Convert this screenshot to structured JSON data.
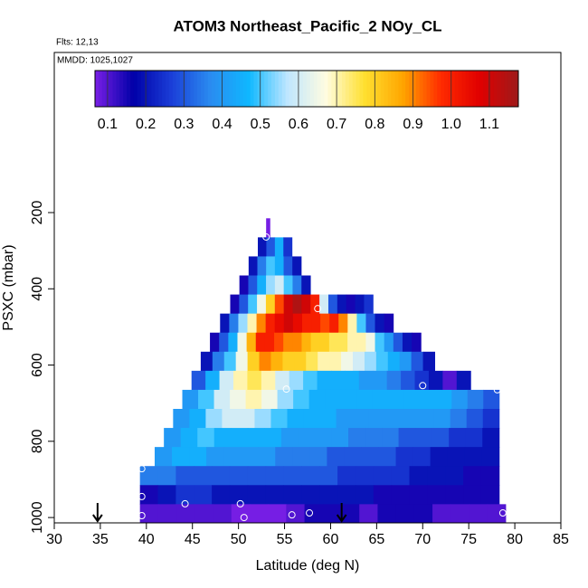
{
  "chart_data": {
    "type": "curtain",
    "title": "ATOM3 Northeast_Pacific_2 NOy_CL",
    "flights": "Flts: 12,13",
    "dates": "MMDD: 1025,1027",
    "xlabel": "Latitude (deg N)",
    "ylabel": "PSXC (mbar)",
    "xlim": [
      30,
      85
    ],
    "xticks": [
      30,
      35,
      40,
      45,
      50,
      55,
      60,
      65,
      70,
      75,
      80,
      85
    ],
    "ylim": [
      1014,
      -220
    ],
    "yticks": [
      200,
      400,
      600,
      800,
      1000
    ],
    "colorbar": {
      "range": [
        0.067,
        1.176
      ],
      "ticks": [
        0.1,
        0.2,
        0.3,
        0.4,
        0.5,
        0.6,
        0.7,
        0.8,
        0.9,
        {
          "value": 1,
          "label": "1.0"
        },
        1.1
      ]
    },
    "colormap": [
      "#7a1fe6",
      "#0000a8",
      "#1b3fd8",
      "#2a8cf0",
      "#0fb8ff",
      "#bfe6ff",
      "#fffce0",
      "#ffe030",
      "#ffa500",
      "#ff2a00",
      "#e00000",
      "#9e1a1a"
    ],
    "rows": [
      {
        "pressure": [
          215,
          265
        ],
        "lat": [
          53.0,
          53.4
        ],
        "values": [
          0.07
        ]
      },
      {
        "pressure": [
          265,
          315
        ],
        "lat": [
          52.1,
          55.8
        ],
        "values": [
          0.2,
          0.3,
          0.45,
          0.25
        ]
      },
      {
        "pressure": [
          315,
          365
        ],
        "lat": [
          51.1,
          56.8
        ],
        "values": [
          0.2,
          0.35,
          0.5,
          0.45,
          0.3,
          0.2
        ]
      },
      {
        "pressure": [
          365,
          415
        ],
        "lat": [
          50.1,
          57.8
        ],
        "values": [
          0.15,
          0.3,
          0.45,
          0.55,
          0.6,
          0.5,
          0.35,
          0.2
        ]
      },
      {
        "pressure": [
          415,
          465
        ],
        "lat": [
          49.1,
          64.6
        ],
        "values": [
          0.15,
          0.3,
          0.5,
          0.65,
          0.8,
          0.95,
          1.1,
          1.15,
          1.1,
          1.0,
          0.6,
          0.3,
          0.2,
          0.15,
          0.2,
          0.25
        ]
      },
      {
        "pressure": [
          465,
          515
        ],
        "lat": [
          48.0,
          66.8
        ],
        "values": [
          0.2,
          0.35,
          0.55,
          0.7,
          0.9,
          1.0,
          1.05,
          1.1,
          1.05,
          1.0,
          1.0,
          0.95,
          1.0,
          0.9,
          0.7,
          0.5,
          0.3,
          0.2,
          0.15
        ]
      },
      {
        "pressure": [
          515,
          565
        ],
        "lat": [
          46.9,
          69.8
        ],
        "values": [
          0.15,
          0.3,
          0.45,
          0.65,
          0.85,
          1.0,
          1.0,
          0.95,
          0.9,
          0.9,
          0.85,
          0.8,
          0.8,
          0.75,
          0.75,
          0.7,
          0.7,
          0.65,
          0.5,
          0.4,
          0.3,
          0.2,
          0.15
        ]
      },
      {
        "pressure": [
          565,
          615
        ],
        "lat": [
          45.9,
          71.3
        ],
        "values": [
          0.2,
          0.35,
          0.5,
          0.65,
          0.8,
          0.9,
          0.85,
          0.8,
          0.8,
          0.75,
          0.7,
          0.7,
          0.65,
          0.6,
          0.55,
          0.5,
          0.45,
          0.4,
          0.3,
          0.2
        ]
      },
      {
        "pressure": [
          615,
          665
        ],
        "lat": [
          44.9,
          75.2
        ],
        "values": [
          0.3,
          0.45,
          0.6,
          0.7,
          0.75,
          0.7,
          0.6,
          0.55,
          0.5,
          0.45,
          0.45,
          0.45,
          0.4,
          0.4,
          0.35,
          0.3,
          0.25,
          0.2,
          0.1,
          0.2
        ]
      },
      {
        "pressure": [
          665,
          715
        ],
        "lat": [
          43.9,
          78.3
        ],
        "values": [
          0.4,
          0.5,
          0.6,
          0.65,
          0.7,
          0.65,
          0.55,
          0.5,
          0.45,
          0.45,
          0.45,
          0.45,
          0.45,
          0.45,
          0.45,
          0.45,
          0.45,
          0.4,
          0.35,
          0.3
        ]
      },
      {
        "pressure": [
          715,
          765
        ],
        "lat": [
          42.9,
          78.3
        ],
        "values": [
          0.4,
          0.45,
          0.55,
          0.6,
          0.6,
          0.55,
          0.5,
          0.45,
          0.45,
          0.45,
          0.4,
          0.4,
          0.4,
          0.4,
          0.4,
          0.4,
          0.4,
          0.35,
          0.3,
          0.25
        ]
      },
      {
        "pressure": [
          765,
          815
        ],
        "lat": [
          41.9,
          78.3
        ],
        "values": [
          0.4,
          0.45,
          0.5,
          0.45,
          0.45,
          0.45,
          0.45,
          0.4,
          0.4,
          0.4,
          0.4,
          0.35,
          0.35,
          0.35,
          0.3,
          0.3,
          0.3,
          0.25,
          0.25,
          0.2
        ]
      },
      {
        "pressure": [
          815,
          865
        ],
        "lat": [
          40.9,
          78.3
        ],
        "values": [
          0.4,
          0.45,
          0.45,
          0.4,
          0.4,
          0.4,
          0.4,
          0.35,
          0.35,
          0.35,
          0.3,
          0.3,
          0.3,
          0.3,
          0.25,
          0.25,
          0.2,
          0.2,
          0.2,
          0.2
        ]
      },
      {
        "pressure": [
          865,
          915
        ],
        "lat": [
          39.3,
          78.3
        ],
        "values": [
          0.35,
          0.35,
          0.3,
          0.3,
          0.3,
          0.3,
          0.3,
          0.3,
          0.3,
          0.3,
          0.3,
          0.25,
          0.25,
          0.25,
          0.25,
          0.2,
          0.2,
          0.2,
          0.15,
          0.15
        ]
      },
      {
        "pressure": [
          915,
          965
        ],
        "lat": [
          39.3,
          78.3
        ],
        "values": [
          0.15,
          0.2,
          0.25,
          0.25,
          0.2,
          0.2,
          0.2,
          0.2,
          0.2,
          0.2,
          0.2,
          0.2,
          0.2,
          0.15,
          0.15,
          0.15,
          0.15,
          0.15,
          0.15,
          0.15
        ]
      },
      {
        "pressure": [
          965,
          1014
        ],
        "lat": [
          39.3,
          79.0
        ],
        "values": [
          0.1,
          0.1,
          0.1,
          0.1,
          0.1,
          0.07,
          0.07,
          0.07,
          0.1,
          0.15,
          0.15,
          0.15,
          0.1,
          0.15,
          0.15,
          0.15,
          0.1,
          0.1,
          0.1,
          0.1
        ]
      }
    ],
    "points": {
      "lat": [
        53.0,
        58.6,
        55.2,
        70.0,
        78.1,
        39.5,
        39.5,
        39.5,
        44.2,
        50.2,
        50.6,
        55.8,
        57.7,
        78.7
      ],
      "pressure": [
        264,
        452,
        663,
        654,
        665,
        872,
        945,
        995,
        964,
        964,
        1000,
        993,
        988,
        988
      ]
    },
    "arrows": [
      34.7,
      61.2
    ]
  }
}
